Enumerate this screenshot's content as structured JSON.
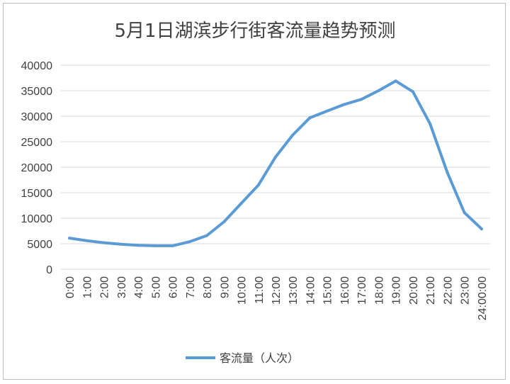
{
  "chart_data": {
    "type": "line",
    "title": "5月1日湖滨步行街客流量趋势预测",
    "xlabel": "",
    "ylabel": "",
    "categories": [
      "0:00",
      "1:00",
      "2:00",
      "3:00",
      "4:00",
      "5:00",
      "6:00",
      "7:00",
      "8:00",
      "9:00",
      "10:00",
      "11:00",
      "12:00",
      "13:00",
      "14:00",
      "15:00",
      "16:00",
      "17:00",
      "18:00",
      "19:00",
      "20:00",
      "21:00",
      "22:00",
      "23:00",
      "24:00:00"
    ],
    "series": [
      {
        "name": "客流量（人次）",
        "color": "#5b9bd5",
        "values": [
          6100,
          5600,
          5200,
          4900,
          4700,
          4600,
          4600,
          5400,
          6600,
          9300,
          12900,
          16500,
          22000,
          26300,
          29700,
          31000,
          32300,
          33300,
          35000,
          36900,
          34800,
          28500,
          19000,
          11100,
          7900
        ]
      }
    ],
    "ylim": [
      0,
      40000
    ],
    "yticks": [
      0,
      5000,
      10000,
      15000,
      20000,
      25000,
      30000,
      35000,
      40000
    ],
    "grid": true,
    "legend_position": "bottom"
  }
}
